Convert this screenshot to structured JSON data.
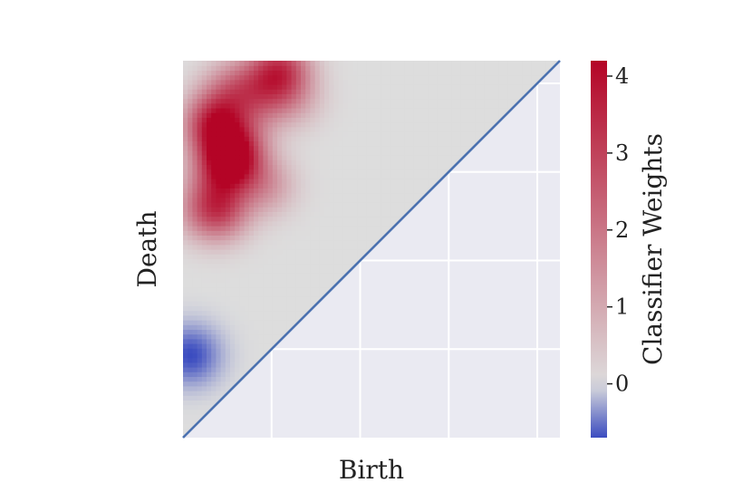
{
  "chart_data": {
    "type": "heatmap",
    "title": "",
    "xlabel": "Birth",
    "ylabel": "Death",
    "colorbar": {
      "label": "Classifier Weights",
      "range": [
        -0.7,
        4.2
      ],
      "ticks": [
        0,
        1,
        2,
        3,
        4
      ],
      "tick_labels": [
        "0",
        "1",
        "2",
        "3",
        "4"
      ],
      "colormap": "coolwarm"
    },
    "x_range": [
      0,
      1
    ],
    "y_range": [
      0,
      1
    ],
    "x_ticks_shown": false,
    "y_ticks_shown": false,
    "diagonal": true,
    "grid": true,
    "peaks": [
      {
        "birth": 0.13,
        "death": 0.74,
        "weight": 3.8
      },
      {
        "birth": 0.08,
        "death": 0.84,
        "weight": 2.6
      },
      {
        "birth": 0.26,
        "death": 0.98,
        "weight": 2.7
      },
      {
        "birth": 0.1,
        "death": 0.6,
        "weight": 2.2
      },
      {
        "birth": 0.22,
        "death": 0.67,
        "weight": 1.3
      },
      {
        "birth": 0.22,
        "death": 0.9,
        "weight": 1.2
      },
      {
        "birth": 0.13,
        "death": 0.92,
        "weight": 1.7
      },
      {
        "birth": 0.05,
        "death": 0.6,
        "weight": 1.2
      },
      {
        "birth": 0.2,
        "death": 0.95,
        "weight": 0.7
      },
      {
        "birth": 0.3,
        "death": 0.9,
        "weight": 0.8
      },
      {
        "birth": 0.09,
        "death": 0.7,
        "weight": 1.0
      },
      {
        "birth": 0.09,
        "death": 0.8,
        "weight": 1.0
      },
      {
        "birth": 0.08,
        "death": 0.64,
        "weight": 0.8
      },
      {
        "birth": 0.16,
        "death": 0.8,
        "weight": 0.9
      },
      {
        "birth": 0.02,
        "death": 0.22,
        "weight": -0.7
      },
      {
        "birth": 0.07,
        "death": 0.61,
        "weight": -0.6
      }
    ],
    "colors": {
      "cool": "#3b4cc0",
      "neutral": "#dddddd",
      "warm": "#b40426",
      "diagonal": "#4c72b0",
      "grid_background": "#eaeaf2",
      "grid_line": "#ffffff"
    }
  }
}
